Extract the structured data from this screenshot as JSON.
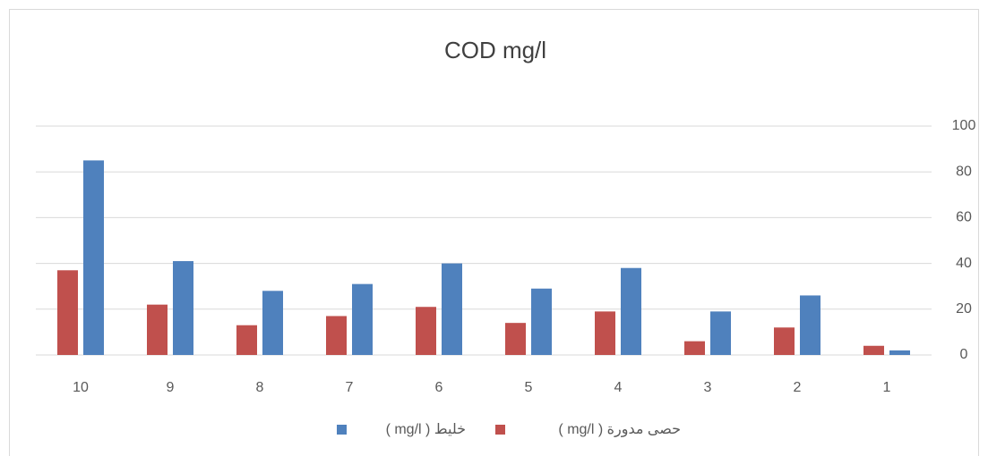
{
  "chart_data": {
    "type": "bar",
    "title": "COD mg/l",
    "categories": [
      "10",
      "9",
      "8",
      "7",
      "6",
      "5",
      "4",
      "3",
      "2",
      "1"
    ],
    "series": [
      {
        "name": "حصى مدورة ( mg/l )",
        "color": "#c0504d",
        "values": [
          37,
          22,
          13,
          17,
          21,
          14,
          19,
          6,
          12,
          4
        ]
      },
      {
        "name": "خليط ( mg/l )",
        "color": "#4f81bd",
        "values": [
          85,
          41,
          28,
          31,
          40,
          29,
          38,
          19,
          26,
          2
        ]
      }
    ],
    "ylim": [
      0,
      100
    ],
    "yticks": [
      0,
      20,
      40,
      60,
      80,
      100
    ],
    "grid": true,
    "y_axis_side": "right",
    "legend": "bottom"
  }
}
